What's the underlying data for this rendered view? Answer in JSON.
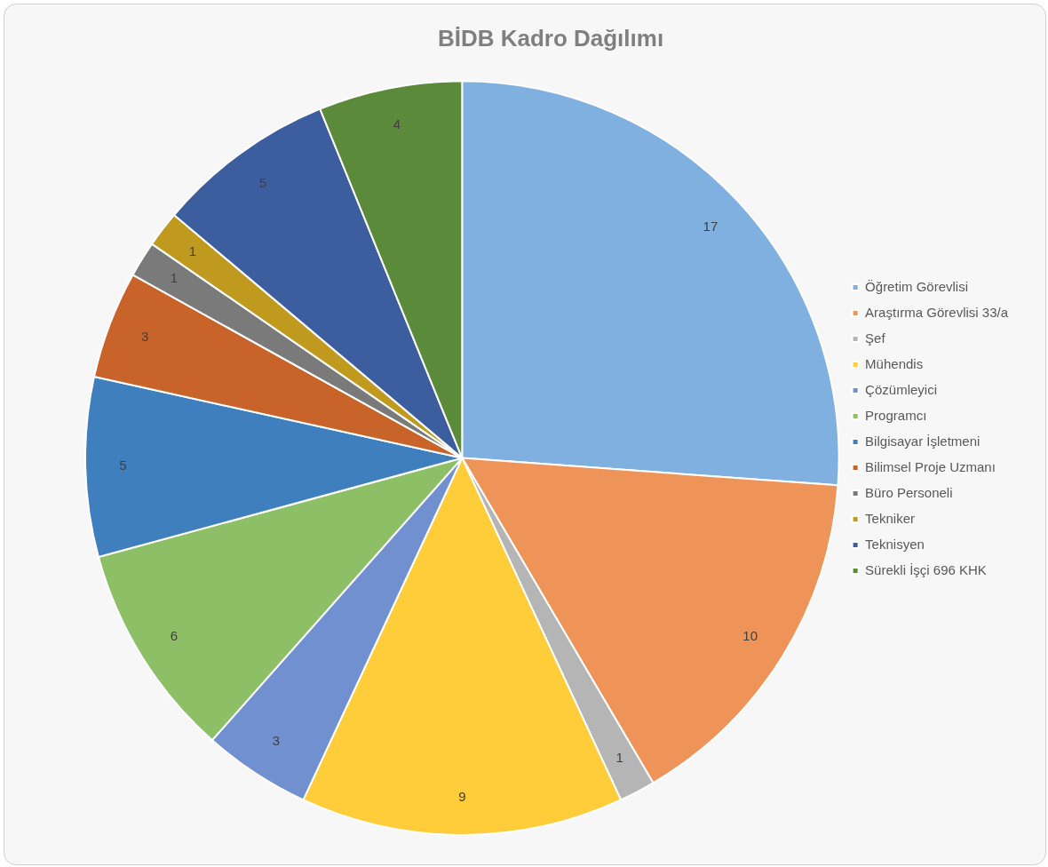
{
  "chart_data": {
    "type": "pie",
    "title": "BİDB Kadro Dağılımı",
    "categories": [
      "Öğretim Görevlisi",
      "Araştırma Görevlisi 33/a",
      "Şef",
      "Mühendis",
      "Çözümleyici",
      "Programcı",
      "Bilgisayar İşletmeni",
      "Bilimsel Proje Uzmanı",
      "Büro Personeli",
      "Tekniker",
      "Teknisyen",
      "Sürekli İşçi 696 KHK"
    ],
    "values": [
      17,
      10,
      1,
      9,
      3,
      6,
      5,
      3,
      1,
      1,
      5,
      4
    ],
    "colors": [
      "#7fb0e0",
      "#ef9459",
      "#b5b5b5",
      "#ffcc3a",
      "#7090d0",
      "#8cbf66",
      "#3f7fbe",
      "#c8632a",
      "#7a7a7a",
      "#c09a1e",
      "#3d5e9e",
      "#5a8a3a"
    ],
    "data_labels": true,
    "legend": "right"
  }
}
